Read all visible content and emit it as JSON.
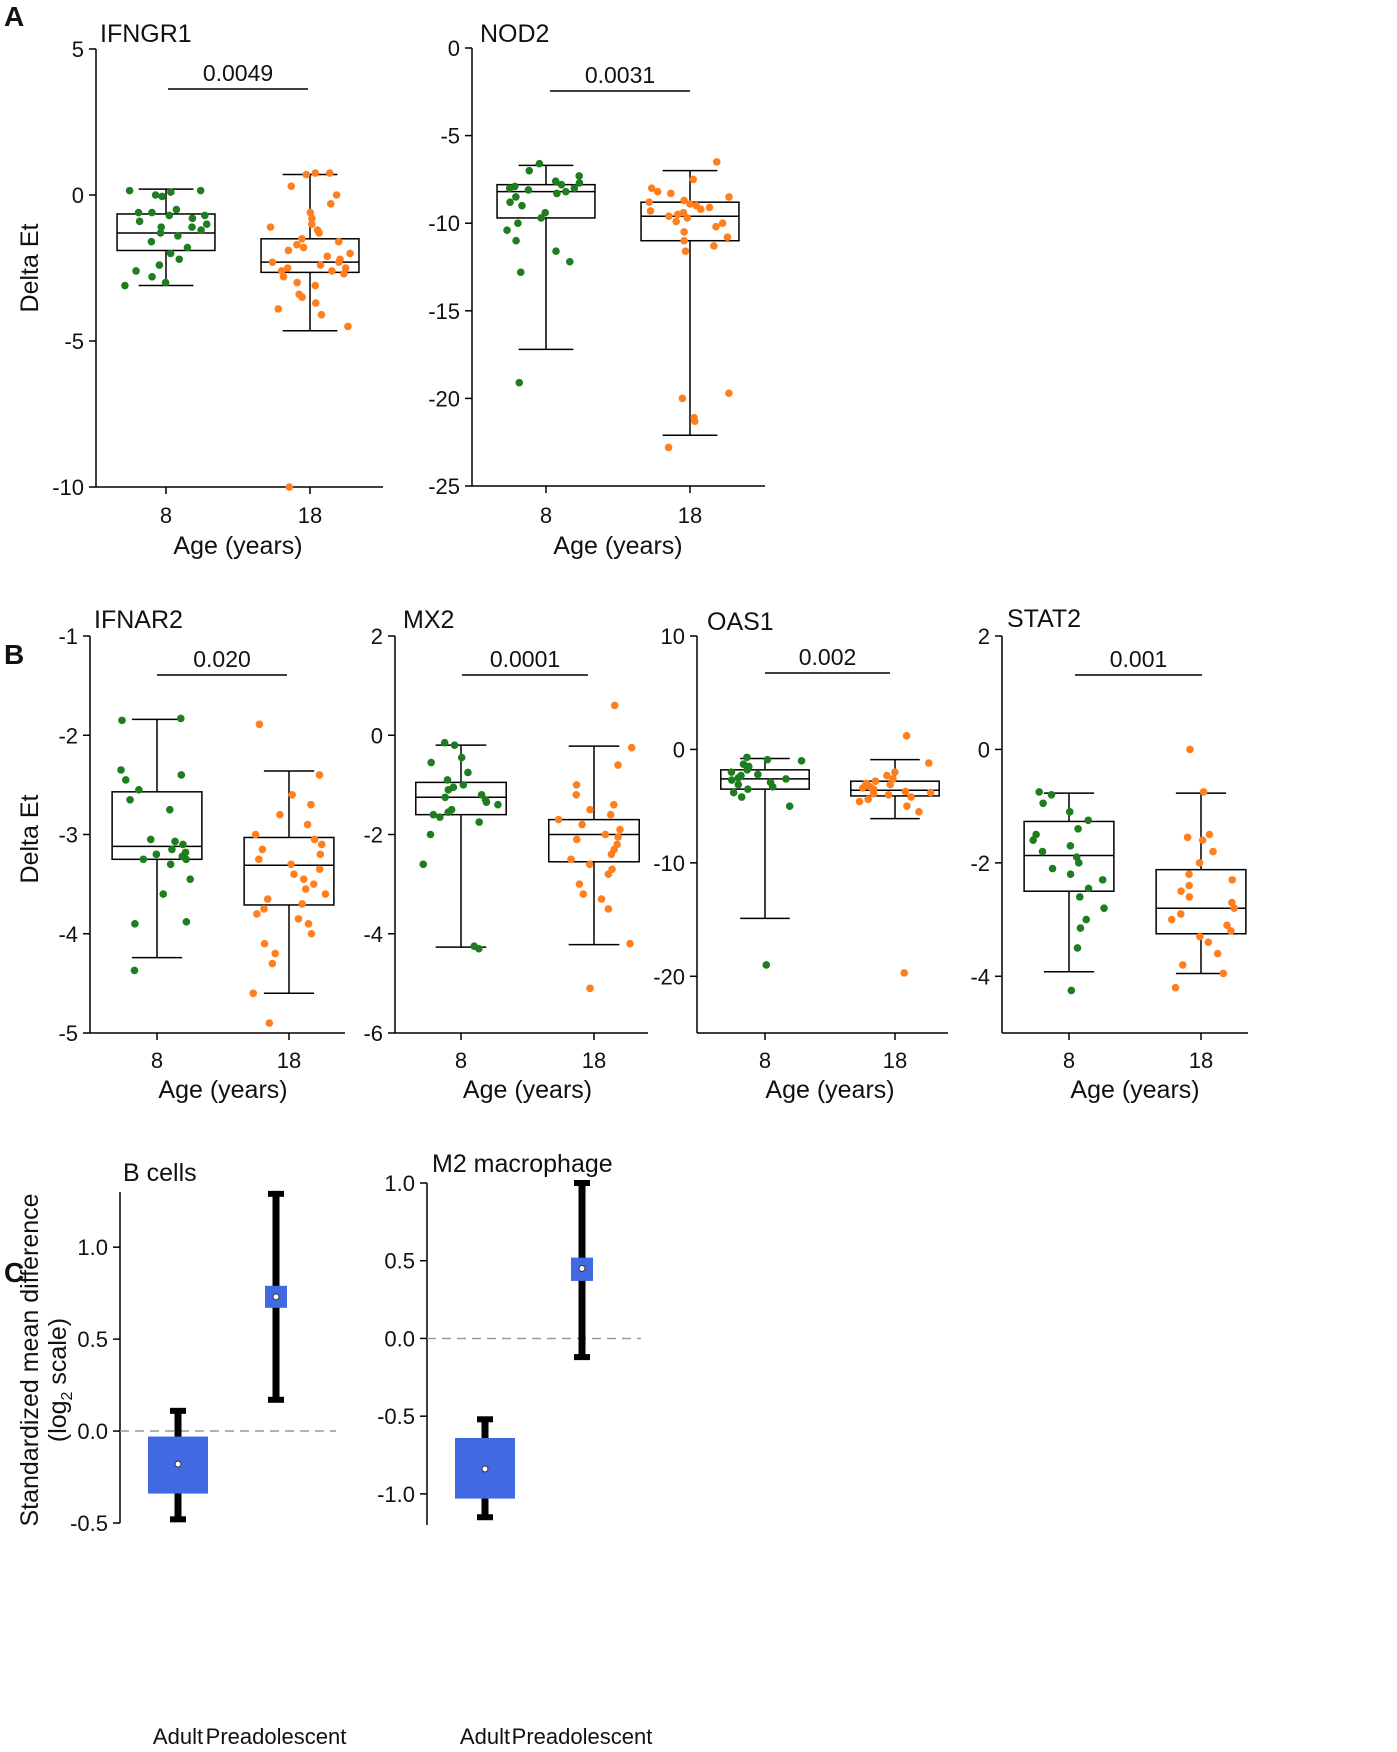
{
  "panel_labels": [
    "A",
    "B",
    "C"
  ],
  "colors": {
    "group1": "#1e7d1e",
    "group2": "#ff7f1e",
    "forest": "#4169e1",
    "whisker": "#000000",
    "dashed": "#999999"
  },
  "chart_data": [
    {
      "id": "ifngr1",
      "type": "box",
      "panel": "A",
      "title": "IFNGR1",
      "xlabel": "Age (years)",
      "ylabel": "Delta Et",
      "ylim": [
        -10,
        5
      ],
      "yticks": [
        5,
        0,
        -5,
        -10
      ],
      "pvalue": "0.0049",
      "categories": [
        "8",
        "18"
      ],
      "boxes": [
        {
          "q1": -1.9,
          "median": -1.3,
          "q3": -0.65,
          "whisker_low": -3.1,
          "whisker_high": 0.2,
          "points": [
            0.15,
            0.15,
            0.1,
            0.0,
            -0.05,
            -0.5,
            -0.6,
            -0.6,
            -0.7,
            -0.7,
            -0.8,
            -0.9,
            -1.0,
            -1.1,
            -1.1,
            -1.2,
            -1.3,
            -1.4,
            -1.6,
            -1.8,
            -2.0,
            -2.2,
            -2.4,
            -2.6,
            -2.8,
            -3.0,
            -3.1
          ]
        },
        {
          "q1": -2.65,
          "median": -2.3,
          "q3": -1.5,
          "whisker_low": -4.65,
          "whisker_high": 0.7,
          "points": [
            0.75,
            0.75,
            0.7,
            0.3,
            0.0,
            -0.3,
            -0.6,
            -0.8,
            -1.0,
            -1.1,
            -1.2,
            -1.3,
            -1.5,
            -1.6,
            -1.7,
            -1.8,
            -1.9,
            -2.0,
            -2.1,
            -2.2,
            -2.3,
            -2.3,
            -2.4,
            -2.5,
            -2.5,
            -2.6,
            -2.6,
            -2.7,
            -2.8,
            -3.0,
            -3.1,
            -3.4,
            -3.5,
            -3.7,
            -3.9,
            -4.1,
            -4.5,
            -10.0
          ]
        }
      ]
    },
    {
      "id": "nod2",
      "type": "box",
      "panel": "A",
      "title": "NOD2",
      "xlabel": "Age (years)",
      "ylabel": "",
      "ylim": [
        -25,
        0
      ],
      "yticks": [
        0,
        -5,
        -10,
        -15,
        -20,
        -25
      ],
      "pvalue": "0.0031",
      "categories": [
        "8",
        "18"
      ],
      "boxes": [
        {
          "q1": -9.7,
          "median": -8.2,
          "q3": -7.8,
          "whisker_low": -17.2,
          "whisker_high": -6.7,
          "points": [
            -6.6,
            -7.0,
            -7.3,
            -7.6,
            -7.7,
            -7.8,
            -7.9,
            -8.0,
            -8.0,
            -8.1,
            -8.2,
            -8.3,
            -8.5,
            -8.8,
            -9.0,
            -9.4,
            -9.7,
            -10.0,
            -10.4,
            -11.0,
            -11.6,
            -12.2,
            -12.8,
            -19.1
          ]
        },
        {
          "q1": -11.0,
          "median": -9.6,
          "q3": -8.8,
          "whisker_low": -22.1,
          "whisker_high": -7.0,
          "points": [
            -6.5,
            -7.5,
            -8.0,
            -8.2,
            -8.3,
            -8.5,
            -8.7,
            -8.8,
            -8.9,
            -9.0,
            -9.1,
            -9.2,
            -9.3,
            -9.4,
            -9.5,
            -9.6,
            -9.7,
            -9.9,
            -10.0,
            -10.2,
            -10.5,
            -10.8,
            -11.0,
            -11.3,
            -11.6,
            -19.7,
            -20.0,
            -21.1,
            -21.3,
            -22.8
          ]
        }
      ]
    },
    {
      "id": "ifnar2",
      "type": "box",
      "panel": "B",
      "title": "IFNAR2",
      "xlabel": "Age (years)",
      "ylabel": "Delta Et",
      "ylim": [
        -5,
        -1
      ],
      "yticks": [
        -1,
        -2,
        -3,
        -4,
        -5
      ],
      "pvalue": "0.020",
      "categories": [
        "8",
        "18"
      ],
      "boxes": [
        {
          "q1": -3.25,
          "median": -3.12,
          "q3": -2.57,
          "whisker_low": -4.24,
          "whisker_high": -1.84,
          "points": [
            -1.83,
            -1.85,
            -2.35,
            -2.4,
            -2.45,
            -2.55,
            -2.65,
            -2.75,
            -3.05,
            -3.07,
            -3.1,
            -3.15,
            -3.18,
            -3.2,
            -3.22,
            -3.25,
            -3.25,
            -3.3,
            -3.45,
            -3.6,
            -3.88,
            -3.9,
            -4.37
          ]
        },
        {
          "q1": -3.71,
          "median": -3.31,
          "q3": -3.03,
          "whisker_low": -4.6,
          "whisker_high": -2.36,
          "points": [
            -1.89,
            -2.4,
            -2.6,
            -2.7,
            -2.8,
            -2.9,
            -3.0,
            -3.05,
            -3.1,
            -3.15,
            -3.2,
            -3.25,
            -3.3,
            -3.35,
            -3.4,
            -3.45,
            -3.5,
            -3.55,
            -3.6,
            -3.65,
            -3.7,
            -3.75,
            -3.8,
            -3.85,
            -3.9,
            -4.0,
            -4.1,
            -4.2,
            -4.3,
            -4.6,
            -4.9
          ]
        }
      ]
    },
    {
      "id": "mx2",
      "type": "box",
      "panel": "B",
      "title": "MX2",
      "xlabel": "Age (years)",
      "ylabel": "",
      "ylim": [
        -6,
        2
      ],
      "yticks": [
        2,
        0,
        -2,
        -4,
        -6
      ],
      "pvalue": "0.0001",
      "categories": [
        "8",
        "18"
      ],
      "boxes": [
        {
          "q1": -1.6,
          "median": -1.25,
          "q3": -0.95,
          "whisker_low": -4.27,
          "whisker_high": -0.2,
          "points": [
            -0.15,
            -0.2,
            -0.45,
            -0.55,
            -0.75,
            -0.9,
            -1.0,
            -1.05,
            -1.1,
            -1.2,
            -1.25,
            -1.3,
            -1.35,
            -1.4,
            -1.5,
            -1.55,
            -1.6,
            -1.65,
            -1.75,
            -2.0,
            -2.6,
            -4.25,
            -4.3
          ]
        },
        {
          "q1": -2.55,
          "median": -2.0,
          "q3": -1.7,
          "whisker_low": -4.22,
          "whisker_high": -0.22,
          "points": [
            0.6,
            -0.25,
            -0.6,
            -1.0,
            -1.2,
            -1.4,
            -1.5,
            -1.6,
            -1.7,
            -1.8,
            -1.9,
            -2.0,
            -2.05,
            -2.1,
            -2.2,
            -2.3,
            -2.4,
            -2.5,
            -2.6,
            -2.7,
            -2.8,
            -3.0,
            -3.2,
            -3.3,
            -3.5,
            -4.2,
            -5.1
          ]
        }
      ]
    },
    {
      "id": "oas1",
      "type": "box",
      "panel": "B",
      "title": "OAS1",
      "xlabel": "Age (years)",
      "ylabel": "",
      "ylim": [
        -25,
        10
      ],
      "yticks": [
        10,
        0,
        -10,
        -20
      ],
      "pvalue": "0.002",
      "categories": [
        "8",
        "18"
      ],
      "boxes": [
        {
          "q1": -3.5,
          "median": -2.6,
          "q3": -1.8,
          "whisker_low": -14.9,
          "whisker_high": -0.8,
          "points": [
            -0.7,
            -0.9,
            -1.0,
            -1.3,
            -1.5,
            -1.8,
            -2.0,
            -2.2,
            -2.3,
            -2.5,
            -2.6,
            -2.7,
            -2.9,
            -3.1,
            -3.3,
            -3.5,
            -3.8,
            -4.2,
            -5.0,
            -19.0
          ]
        },
        {
          "q1": -4.1,
          "median": -3.6,
          "q3": -2.8,
          "whisker_low": -6.1,
          "whisker_high": -0.9,
          "points": [
            1.2,
            -1.2,
            -2.0,
            -2.3,
            -2.6,
            -2.8,
            -3.0,
            -3.1,
            -3.2,
            -3.3,
            -3.4,
            -3.5,
            -3.6,
            -3.7,
            -3.8,
            -3.9,
            -4.0,
            -4.2,
            -4.4,
            -4.6,
            -5.0,
            -5.5,
            -19.7
          ]
        }
      ]
    },
    {
      "id": "stat2",
      "type": "box",
      "panel": "B",
      "title": "STAT2",
      "xlabel": "Age (years)",
      "ylabel": "",
      "ylim": [
        -5,
        2
      ],
      "yticks": [
        2,
        0,
        -2,
        -4
      ],
      "pvalue": "0.001",
      "categories": [
        "8",
        "18"
      ],
      "boxes": [
        {
          "q1": -2.5,
          "median": -1.87,
          "q3": -1.27,
          "whisker_low": -3.92,
          "whisker_high": -0.77,
          "points": [
            -0.75,
            -0.8,
            -0.95,
            -1.1,
            -1.25,
            -1.4,
            -1.5,
            -1.6,
            -1.7,
            -1.8,
            -1.9,
            -2.0,
            -2.1,
            -2.2,
            -2.3,
            -2.45,
            -2.6,
            -2.8,
            -3.0,
            -3.15,
            -3.5,
            -4.25
          ]
        },
        {
          "q1": -3.25,
          "median": -2.8,
          "q3": -2.12,
          "whisker_low": -3.95,
          "whisker_high": -0.77,
          "points": [
            0.0,
            -0.75,
            -1.5,
            -1.55,
            -1.6,
            -1.8,
            -2.0,
            -2.2,
            -2.3,
            -2.4,
            -2.5,
            -2.6,
            -2.7,
            -2.8,
            -2.9,
            -3.0,
            -3.1,
            -3.2,
            -3.3,
            -3.4,
            -3.6,
            -3.8,
            -3.95,
            -4.2
          ]
        }
      ]
    },
    {
      "id": "bcells",
      "type": "forest",
      "panel": "C",
      "title": "B cells",
      "ylabel": "Standardized mean difference",
      "ylabel2": "(log",
      "ylabel2_sub": "2",
      "ylabel2_tail": " scale)",
      "ylim": [
        -0.5,
        1.3
      ],
      "yticks": [
        1.0,
        0.5,
        0.0,
        -0.5
      ],
      "yticklabels": [
        "1.0",
        "0.5",
        "0.0",
        "-0.5"
      ],
      "categories": [
        "Adult",
        "Preadolescent"
      ],
      "estimates": [
        {
          "mean": -0.18,
          "ci_low": -0.48,
          "ci_high": 0.11,
          "box_low": -0.34,
          "box_high": -0.03
        },
        {
          "mean": 0.73,
          "ci_low": 0.17,
          "ci_high": 1.29,
          "box_low": 0.67,
          "box_high": 0.79
        }
      ]
    },
    {
      "id": "m2",
      "type": "forest",
      "panel": "C",
      "title": "M2 macrophage",
      "ylabel": "",
      "ylim": [
        -1.2,
        1.0
      ],
      "yticks": [
        1.0,
        0.5,
        0.0,
        -0.5,
        -1.0
      ],
      "yticklabels": [
        "1.0",
        "0.5",
        "0.0",
        "-0.5",
        "-1.0"
      ],
      "categories": [
        "Adult",
        "Preadolescent"
      ],
      "estimates": [
        {
          "mean": -0.84,
          "ci_low": -1.15,
          "ci_high": -0.52,
          "box_low": -1.03,
          "box_high": -0.64
        },
        {
          "mean": 0.45,
          "ci_low": -0.12,
          "ci_high": 1.0,
          "box_low": 0.37,
          "box_high": 0.52
        }
      ]
    }
  ]
}
